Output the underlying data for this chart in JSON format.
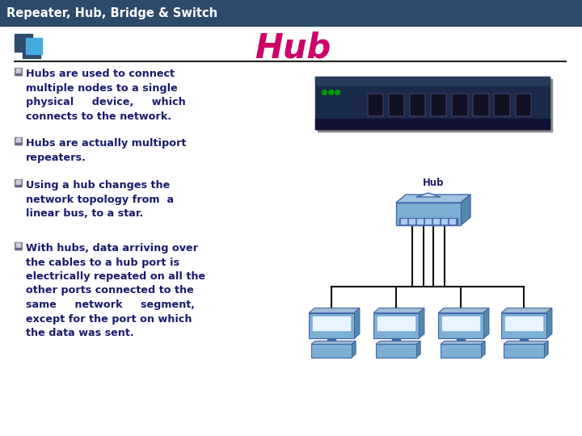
{
  "title": "Hub",
  "header": "Repeater, Hub, Bridge & Switch",
  "header_bg": "#2E4A6B",
  "header_text_color": "#FFFFFF",
  "title_color": "#CC0066",
  "bg_color": "#FFFFFF",
  "text_color": "#1A1A6E",
  "bullet_icon_dark": "#5555AA",
  "bullet_icon_light": "#9999CC",
  "bullets": [
    "Hubs are used to connect\nmultiple nodes to a single\nphysical     device,     which\nconnects to the network.",
    "Hubs are actually multiport\nrepeaters.",
    "Using a hub changes the\nnetwork topology from  a\nlinear bus, to a star.",
    "With hubs, data arriving over\nthe cables to a hub port is\nelectrically repeated on all the\nother ports connected to the\nsame     network     segment,\nexcept for the port on which\nthe data was sent."
  ],
  "hub_device_color": "#1A2A4A",
  "hub_box_color": "#7BAFD4",
  "hub_box_dark": "#5588AA",
  "hub_port_color": "#AACCEE",
  "computer_body": "#7BAFD4",
  "computer_screen": "#E8F4FF",
  "computer_dark": "#4466AA",
  "line_color": "#111111",
  "figsize": [
    7.2,
    5.4
  ],
  "dpi": 100
}
